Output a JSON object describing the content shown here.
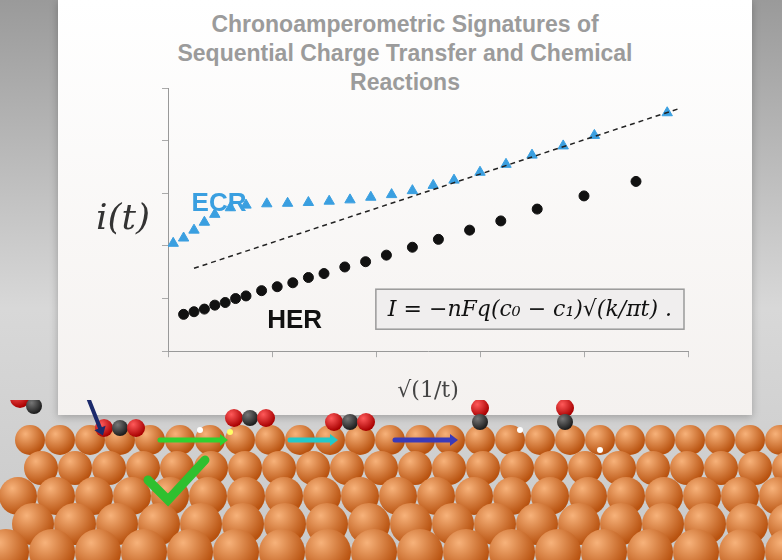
{
  "chart_data": {
    "type": "scatter",
    "title": "Chronoamperometric Signatures of Sequential Charge Transfer and Chemical Reactions",
    "x_label": "√(1/t)",
    "y_label": "i(t)",
    "annotations": [
      "I = −nFq(c₀ − c₁)√(k/πt) ."
    ],
    "xlim": [
      0,
      10
    ],
    "ylim": [
      0,
      10
    ],
    "xticks": [
      0,
      2,
      4,
      6,
      8,
      10
    ],
    "yticks": [
      0,
      2,
      4,
      6,
      8,
      10
    ],
    "grid": false,
    "tick_labels": false,
    "series": [
      {
        "name": "ECR",
        "color": "#3a9fe0",
        "marker": "triangle",
        "line_style": "none",
        "x": [
          0.1,
          0.3,
          0.5,
          0.7,
          0.9,
          1.2,
          1.5,
          1.9,
          2.3,
          2.7,
          3.1,
          3.5,
          3.9,
          4.3,
          4.7,
          5.1,
          5.5,
          6.0,
          6.5,
          7.0,
          7.6,
          8.2,
          9.6
        ],
        "values": [
          4.1,
          4.3,
          4.6,
          4.9,
          5.2,
          5.45,
          5.55,
          5.6,
          5.62,
          5.65,
          5.7,
          5.75,
          5.85,
          5.95,
          6.1,
          6.3,
          6.5,
          6.8,
          7.1,
          7.45,
          7.8,
          8.2,
          9.06
        ]
      },
      {
        "name": "HER",
        "color": "#111111",
        "marker": "circle",
        "line_style": "none",
        "x": [
          0.3,
          0.5,
          0.7,
          0.9,
          1.1,
          1.3,
          1.5,
          1.8,
          2.1,
          2.4,
          2.7,
          3.0,
          3.4,
          3.8,
          4.2,
          4.7,
          5.2,
          5.8,
          6.4,
          7.1,
          8.0,
          9.0
        ],
        "values": [
          1.4,
          1.5,
          1.6,
          1.75,
          1.85,
          2.0,
          2.1,
          2.3,
          2.45,
          2.6,
          2.8,
          2.95,
          3.2,
          3.4,
          3.65,
          3.95,
          4.25,
          4.6,
          4.95,
          5.4,
          5.9,
          6.45
        ]
      },
      {
        "type": "line",
        "color": "#222222",
        "marker": "none",
        "line_style": "dashed",
        "x": [
          0.5,
          9.8
        ],
        "values": [
          3.15,
          9.2
        ]
      }
    ]
  }
}
